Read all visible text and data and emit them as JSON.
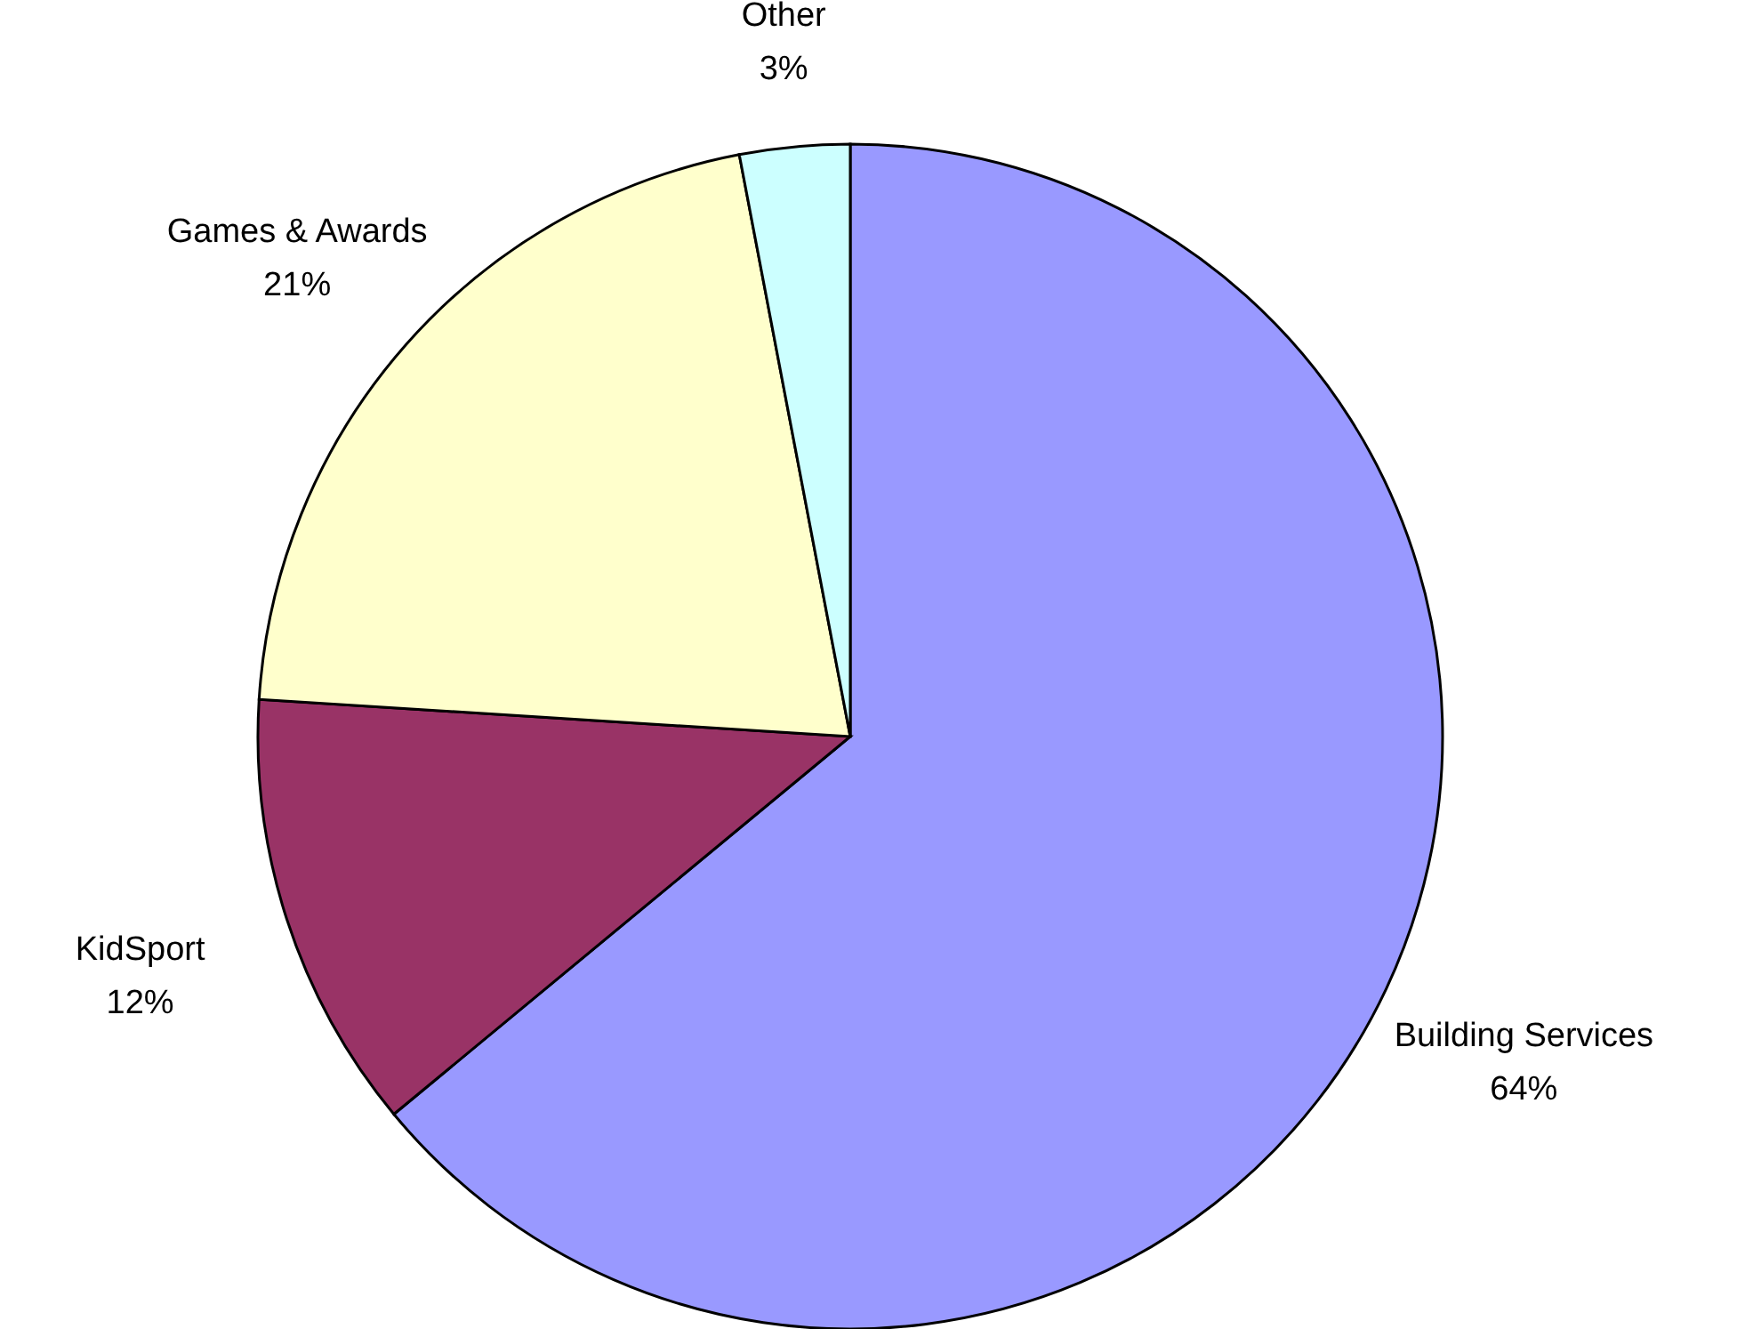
{
  "chart_data": {
    "type": "pie",
    "categories": [
      "Building Services",
      "KidSport",
      "Games & Awards",
      "Other"
    ],
    "values": [
      64,
      12,
      21,
      3
    ],
    "colors": [
      "#9999ff",
      "#993366",
      "#ffffcc",
      "#ccffff"
    ],
    "value_labels": [
      "64%",
      "12%",
      "21%",
      "3%"
    ]
  }
}
